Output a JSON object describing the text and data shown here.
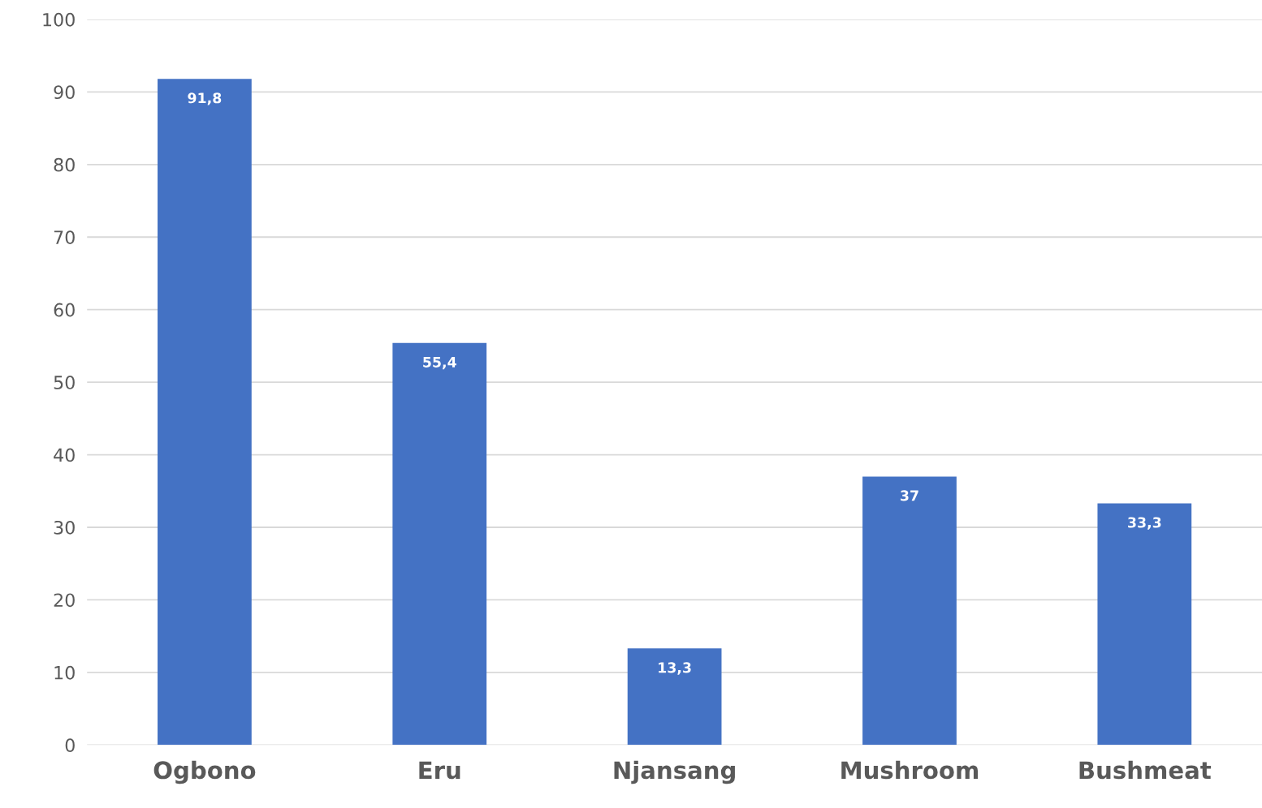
{
  "chart_data": {
    "type": "bar",
    "categories": [
      "Ogbono",
      "Eru",
      "Njansang",
      "Mushroom",
      "Bushmeat"
    ],
    "values": [
      91.8,
      55.4,
      13.3,
      37,
      33.3
    ],
    "value_labels": [
      "91,8",
      "55,4",
      "13,3",
      "37",
      "33,3"
    ],
    "color": "#4472c4",
    "ylim": [
      0,
      100
    ],
    "yticks": [
      0,
      10,
      20,
      30,
      40,
      50,
      60,
      70,
      80,
      90,
      100
    ],
    "grid": "y",
    "legend": false
  }
}
